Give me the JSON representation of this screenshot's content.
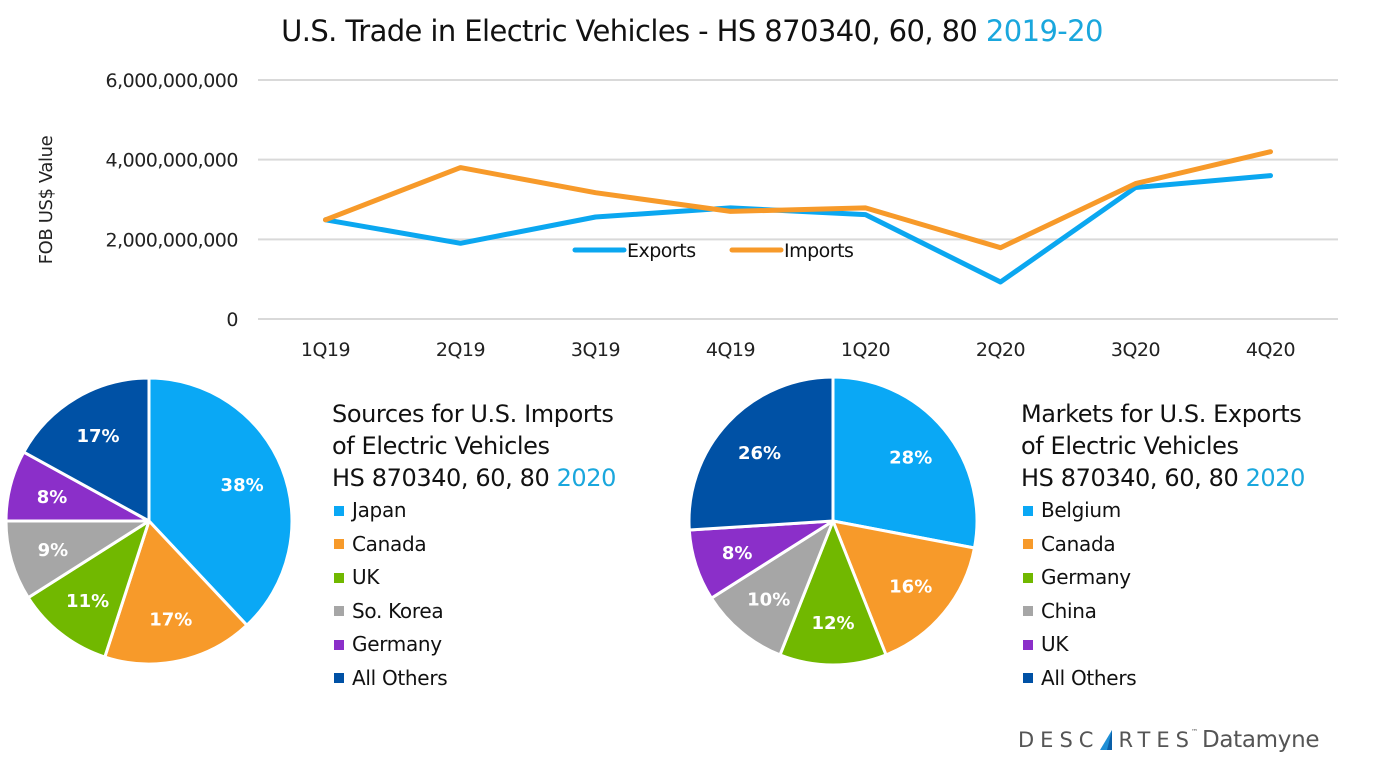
{
  "title": {
    "main": "U.S. Trade in Electric Vehicles - HS 870340, 60, 80 ",
    "accent": "2019-20"
  },
  "colors": {
    "exports": "#0ba7f0",
    "imports": "#f79a2a",
    "accent_text": "#1aa7dd",
    "grid": "#d9d9d9"
  },
  "chart_data": [
    {
      "type": "line",
      "title": "U.S. Trade in Electric Vehicles - HS 870340, 60, 80 2019-20",
      "xlabel": "",
      "ylabel": "FOB US$ Value",
      "categories": [
        "1Q19",
        "2Q19",
        "3Q19",
        "4Q19",
        "1Q20",
        "2Q20",
        "3Q20",
        "4Q20"
      ],
      "series": [
        {
          "name": "Exports",
          "color": "#0ba7f0",
          "values": [
            2490000000,
            1900000000,
            2560000000,
            2790000000,
            2620000000,
            930000000,
            3300000000,
            3600000000
          ]
        },
        {
          "name": "Imports",
          "color": "#f79a2a",
          "values": [
            2490000000,
            3800000000,
            3170000000,
            2700000000,
            2790000000,
            1790000000,
            3400000000,
            4200000000
          ]
        }
      ],
      "ylim": [
        0,
        6000000000
      ],
      "yticks": [
        0,
        2000000000,
        4000000000,
        6000000000
      ],
      "ytick_labels": [
        "0",
        "2,000,000,000",
        "4,000,000,000",
        "6,000,000,000"
      ],
      "grid": true,
      "legend": "center, inside plot"
    },
    {
      "type": "pie",
      "title_lines": [
        "Sources for U.S. Imports",
        "of Electric Vehicles",
        "HS 870340, 60, 80 "
      ],
      "title_accent": "2020",
      "categories": [
        "Japan",
        "Canada",
        "UK",
        "So. Korea",
        "Germany",
        "All Others"
      ],
      "values": [
        38,
        17,
        11,
        9,
        8,
        17
      ],
      "labels": [
        "38%",
        "17%",
        "11%",
        "9%",
        "8%",
        "17%"
      ],
      "colors": [
        "#0aa8f5",
        "#f79a2a",
        "#71b800",
        "#a6a6a6",
        "#8b2fc9",
        "#0051a5"
      ],
      "legend": "right"
    },
    {
      "type": "pie",
      "title_lines": [
        "Markets for U.S. Exports",
        "of Electric Vehicles",
        "HS 870340, 60, 80 "
      ],
      "title_accent": "2020",
      "categories": [
        "Belgium",
        "Canada",
        "Germany",
        "China",
        "UK",
        "All Others"
      ],
      "values": [
        28,
        16,
        12,
        10,
        8,
        26
      ],
      "labels": [
        "28%",
        "16%",
        "12%",
        "10%",
        "8%",
        "26%"
      ],
      "colors": [
        "#0aa8f5",
        "#f79a2a",
        "#71b800",
        "#a6a6a6",
        "#8b2fc9",
        "#0051a5"
      ],
      "legend": "right"
    }
  ],
  "logo": {
    "part1": "DESC",
    "part2": "RTES",
    "tm": "™",
    "brand": "Datamyne"
  }
}
